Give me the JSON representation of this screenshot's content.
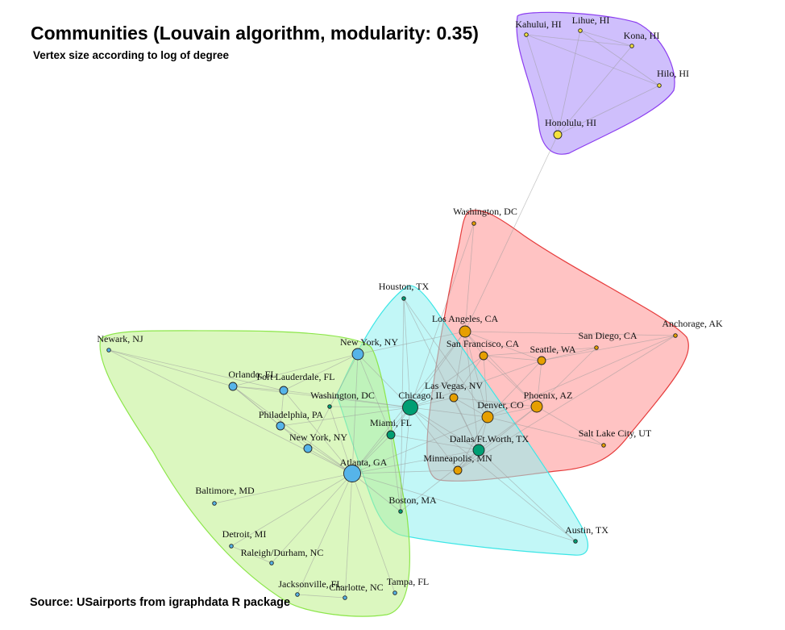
{
  "title": "Communities (Louvain algorithm, modularity: 0.35)",
  "subtitle": "Vertex size according to log of degree",
  "source": "Source: USairports from igraphdata R package",
  "colors": {
    "community_purple_fill": "#a78bfa",
    "community_purple_stroke": "#8b3cf0",
    "community_red_fill": "#ff9e9e",
    "community_red_stroke": "#e63c3c",
    "community_cyan_fill": "#8ff0f0",
    "community_cyan_stroke": "#3ce6e6",
    "community_green_fill": "#bdf08a",
    "community_green_stroke": "#8ce64a",
    "node_yellow": "#f5e23c",
    "node_orange": "#e69f00",
    "node_teal": "#009e73",
    "node_blue": "#56b4e9",
    "edge": "#9a9a9a"
  },
  "nodes": [
    {
      "id": "kahului",
      "label": "Kahului, HI",
      "community": "purple",
      "color": "yellow",
      "size": "small"
    },
    {
      "id": "lihue",
      "label": "Lihue, HI",
      "community": "purple",
      "color": "yellow",
      "size": "small"
    },
    {
      "id": "kona",
      "label": "Kona, HI",
      "community": "purple",
      "color": "yellow",
      "size": "small"
    },
    {
      "id": "hilo",
      "label": "Hilo, HI",
      "community": "purple",
      "color": "yellow",
      "size": "small"
    },
    {
      "id": "honolulu",
      "label": "Honolulu, HI",
      "community": "purple",
      "color": "yellow",
      "size": "medium"
    },
    {
      "id": "washington_dc_top",
      "label": "Washington, DC",
      "community": "red",
      "color": "orange",
      "size": "small"
    },
    {
      "id": "houston",
      "label": "Houston, TX",
      "community": "cyan",
      "color": "teal",
      "size": "small"
    },
    {
      "id": "los_angeles",
      "label": "Los Angeles, CA",
      "community": "red",
      "color": "orange",
      "size": "large"
    },
    {
      "id": "anchorage",
      "label": "Anchorage, AK",
      "community": "red",
      "color": "orange",
      "size": "small"
    },
    {
      "id": "san_diego",
      "label": "San Diego, CA",
      "community": "red",
      "color": "orange",
      "size": "small"
    },
    {
      "id": "san_francisco",
      "label": "San Francisco, CA",
      "community": "red",
      "color": "orange",
      "size": "medium"
    },
    {
      "id": "seattle",
      "label": "Seattle, WA",
      "community": "red",
      "color": "orange",
      "size": "medium"
    },
    {
      "id": "las_vegas",
      "label": "Las Vegas, NV",
      "community": "red",
      "color": "orange",
      "size": "medium"
    },
    {
      "id": "phoenix",
      "label": "Phoenix, AZ",
      "community": "red",
      "color": "orange",
      "size": "large"
    },
    {
      "id": "denver",
      "label": "Denver, CO",
      "community": "red",
      "color": "orange",
      "size": "large"
    },
    {
      "id": "salt_lake_city",
      "label": "Salt Lake City, UT",
      "community": "red",
      "color": "orange",
      "size": "small"
    },
    {
      "id": "chicago",
      "label": "Chicago, IL",
      "community": "cyan",
      "color": "teal",
      "size": "xlarge"
    },
    {
      "id": "dallas",
      "label": "Dallas/Ft.Worth, TX",
      "community": "cyan",
      "color": "teal",
      "size": "large"
    },
    {
      "id": "miami",
      "label": "Miami, FL",
      "community": "cyan",
      "color": "teal",
      "size": "medium"
    },
    {
      "id": "minneapolis",
      "label": "Minneapolis, MN",
      "community": "red",
      "color": "orange",
      "size": "medium"
    },
    {
      "id": "boston",
      "label": "Boston, MA",
      "community": "cyan",
      "color": "teal",
      "size": "small"
    },
    {
      "id": "austin",
      "label": "Austin, TX",
      "community": "cyan",
      "color": "teal",
      "size": "small"
    },
    {
      "id": "newark",
      "label": "Newark, NJ",
      "community": "green",
      "color": "blue",
      "size": "small"
    },
    {
      "id": "new_york_top",
      "label": "New York, NY",
      "community": "green",
      "color": "blue",
      "size": "large"
    },
    {
      "id": "orlando",
      "label": "Orlando, FL",
      "community": "green",
      "color": "blue",
      "size": "medium"
    },
    {
      "id": "fort_lauderdale",
      "label": "Fort Lauderdale, FL",
      "community": "green",
      "color": "blue",
      "size": "medium"
    },
    {
      "id": "washington_dc_mid",
      "label": "Washington, DC",
      "community": "green",
      "color": "teal",
      "size": "small"
    },
    {
      "id": "philadelphia",
      "label": "Philadelphia, PA",
      "community": "green",
      "color": "blue",
      "size": "medium"
    },
    {
      "id": "new_york_low",
      "label": "New York, NY",
      "community": "green",
      "color": "blue",
      "size": "medium"
    },
    {
      "id": "atlanta",
      "label": "Atlanta, GA",
      "community": "green",
      "color": "blue",
      "size": "xxlarge"
    },
    {
      "id": "baltimore",
      "label": "Baltimore, MD",
      "community": "green",
      "color": "blue",
      "size": "small"
    },
    {
      "id": "detroit",
      "label": "Detroit, MI",
      "community": "green",
      "color": "blue",
      "size": "small"
    },
    {
      "id": "raleigh",
      "label": "Raleigh/Durham, NC",
      "community": "green",
      "color": "blue",
      "size": "small"
    },
    {
      "id": "jacksonville",
      "label": "Jacksonville, FL",
      "community": "green",
      "color": "blue",
      "size": "small"
    },
    {
      "id": "charlotte",
      "label": "Charlotte, NC",
      "community": "green",
      "color": "blue",
      "size": "small"
    },
    {
      "id": "tampa",
      "label": "Tampa, FL",
      "community": "green",
      "color": "blue",
      "size": "small"
    }
  ],
  "edges": [
    [
      "honolulu",
      "kahului"
    ],
    [
      "honolulu",
      "lihue"
    ],
    [
      "honolulu",
      "kona"
    ],
    [
      "honolulu",
      "hilo"
    ],
    [
      "kahului",
      "kona"
    ],
    [
      "lihue",
      "hilo"
    ],
    [
      "kahului",
      "hilo"
    ],
    [
      "lihue",
      "kona"
    ],
    [
      "honolulu",
      "los_angeles"
    ],
    [
      "washington_dc_top",
      "chicago"
    ],
    [
      "washington_dc_top",
      "los_angeles"
    ],
    [
      "houston",
      "chicago"
    ],
    [
      "houston",
      "dallas"
    ],
    [
      "houston",
      "boston"
    ],
    [
      "houston",
      "denver"
    ],
    [
      "los_angeles",
      "san_francisco"
    ],
    [
      "los_angeles",
      "seattle"
    ],
    [
      "los_angeles",
      "phoenix"
    ],
    [
      "los_angeles",
      "denver"
    ],
    [
      "los_angeles",
      "las_vegas"
    ],
    [
      "los_angeles",
      "chicago"
    ],
    [
      "los_angeles",
      "dallas"
    ],
    [
      "los_angeles",
      "new_york_top"
    ],
    [
      "los_angeles",
      "atlanta"
    ],
    [
      "anchorage",
      "seattle"
    ],
    [
      "anchorage",
      "denver"
    ],
    [
      "anchorage",
      "minneapolis"
    ],
    [
      "anchorage",
      "los_angeles"
    ],
    [
      "san_diego",
      "seattle"
    ],
    [
      "san_diego",
      "san_francisco"
    ],
    [
      "san_diego",
      "phoenix"
    ],
    [
      "san_francisco",
      "seattle"
    ],
    [
      "san_francisco",
      "denver"
    ],
    [
      "san_francisco",
      "phoenix"
    ],
    [
      "san_francisco",
      "chicago"
    ],
    [
      "san_francisco",
      "las_vegas"
    ],
    [
      "seattle",
      "denver"
    ],
    [
      "seattle",
      "phoenix"
    ],
    [
      "seattle",
      "chicago"
    ],
    [
      "las_vegas",
      "denver"
    ],
    [
      "las_vegas",
      "phoenix"
    ],
    [
      "las_vegas",
      "dallas"
    ],
    [
      "las_vegas",
      "chicago"
    ],
    [
      "phoenix",
      "denver"
    ],
    [
      "phoenix",
      "salt_lake_city"
    ],
    [
      "phoenix",
      "dallas"
    ],
    [
      "phoenix",
      "minneapolis"
    ],
    [
      "denver",
      "chicago"
    ],
    [
      "denver",
      "dallas"
    ],
    [
      "denver",
      "minneapolis"
    ],
    [
      "denver",
      "salt_lake_city"
    ],
    [
      "denver",
      "atlanta"
    ],
    [
      "chicago",
      "dallas"
    ],
    [
      "chicago",
      "miami"
    ],
    [
      "chicago",
      "minneapolis"
    ],
    [
      "chicago",
      "new_york_top"
    ],
    [
      "chicago",
      "atlanta"
    ],
    [
      "chicago",
      "washington_dc_mid"
    ],
    [
      "chicago",
      "orlando"
    ],
    [
      "chicago",
      "philadelphia"
    ],
    [
      "chicago",
      "boston"
    ],
    [
      "chicago",
      "fort_lauderdale"
    ],
    [
      "dallas",
      "austin"
    ],
    [
      "dallas",
      "atlanta"
    ],
    [
      "dallas",
      "miami"
    ],
    [
      "dallas",
      "minneapolis"
    ],
    [
      "dallas",
      "boston"
    ],
    [
      "miami",
      "atlanta"
    ],
    [
      "miami",
      "new_york_top"
    ],
    [
      "miami",
      "boston"
    ],
    [
      "minneapolis",
      "atlanta"
    ],
    [
      "austin",
      "atlanta"
    ],
    [
      "austin",
      "chicago"
    ],
    [
      "newark",
      "orlando"
    ],
    [
      "newark",
      "atlanta"
    ],
    [
      "newark",
      "fort_lauderdale"
    ],
    [
      "new_york_top",
      "orlando"
    ],
    [
      "new_york_top",
      "fort_lauderdale"
    ],
    [
      "new_york_top",
      "atlanta"
    ],
    [
      "new_york_top",
      "new_york_low"
    ],
    [
      "orlando",
      "philadelphia"
    ],
    [
      "orlando",
      "new_york_low"
    ],
    [
      "orlando",
      "atlanta"
    ],
    [
      "orlando",
      "fort_lauderdale"
    ],
    [
      "fort_lauderdale",
      "philadelphia"
    ],
    [
      "fort_lauderdale",
      "atlanta"
    ],
    [
      "washington_dc_mid",
      "atlanta"
    ],
    [
      "philadelphia",
      "atlanta"
    ],
    [
      "new_york_low",
      "atlanta"
    ],
    [
      "atlanta",
      "baltimore"
    ],
    [
      "atlanta",
      "detroit"
    ],
    [
      "atlanta",
      "raleigh"
    ],
    [
      "atlanta",
      "jacksonville"
    ],
    [
      "atlanta",
      "charlotte"
    ],
    [
      "atlanta",
      "tampa"
    ],
    [
      "atlanta",
      "boston"
    ],
    [
      "detroit",
      "raleigh"
    ],
    [
      "jacksonville",
      "charlotte"
    ]
  ]
}
